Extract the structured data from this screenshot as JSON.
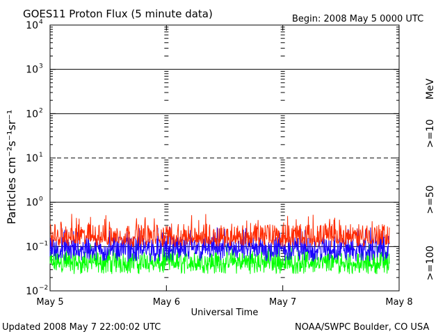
{
  "header": {
    "title": "GOES11 Proton Flux (5 minute data)",
    "begin": "Begin: 2008 May 5 0000 UTC"
  },
  "footer": {
    "updated": "Updated 2008 May  7 22:00:02 UTC",
    "source": "NOAA/SWPC Boulder, CO USA"
  },
  "colors": {
    "ge10": "#ff2a00",
    "ge50": "#1a00ff",
    "ge100": "#00ff00",
    "axis": "#000000"
  },
  "chart_data": {
    "type": "line",
    "title": "GOES11 Proton Flux (5 minute data)",
    "xlabel": "Universal Time",
    "ylabel": "Particles cm⁻²s⁻¹sr⁻¹",
    "yscale": "log",
    "ylim": [
      0.01,
      10000
    ],
    "ytick_exponents": [
      -2,
      -1,
      0,
      1,
      2,
      3,
      4
    ],
    "xlim_days": [
      0,
      3
    ],
    "xticks": [
      "May 5",
      "May 6",
      "May 7",
      "May 8"
    ],
    "grid": "horizontal lines at each decade; dashed at 10^1 and 10^4",
    "energy_unit": "MeV",
    "series": [
      {
        "name": ">=10",
        "color": "#ff2a00",
        "min": 0.1,
        "max": 0.55,
        "typical": 0.17
      },
      {
        "name": ">=50",
        "color": "#1a00ff",
        "min": 0.045,
        "max": 0.28,
        "typical": 0.09
      },
      {
        "name": ">=100",
        "color": "#00ff00",
        "min": 0.024,
        "max": 0.12,
        "typical": 0.045
      }
    ]
  }
}
